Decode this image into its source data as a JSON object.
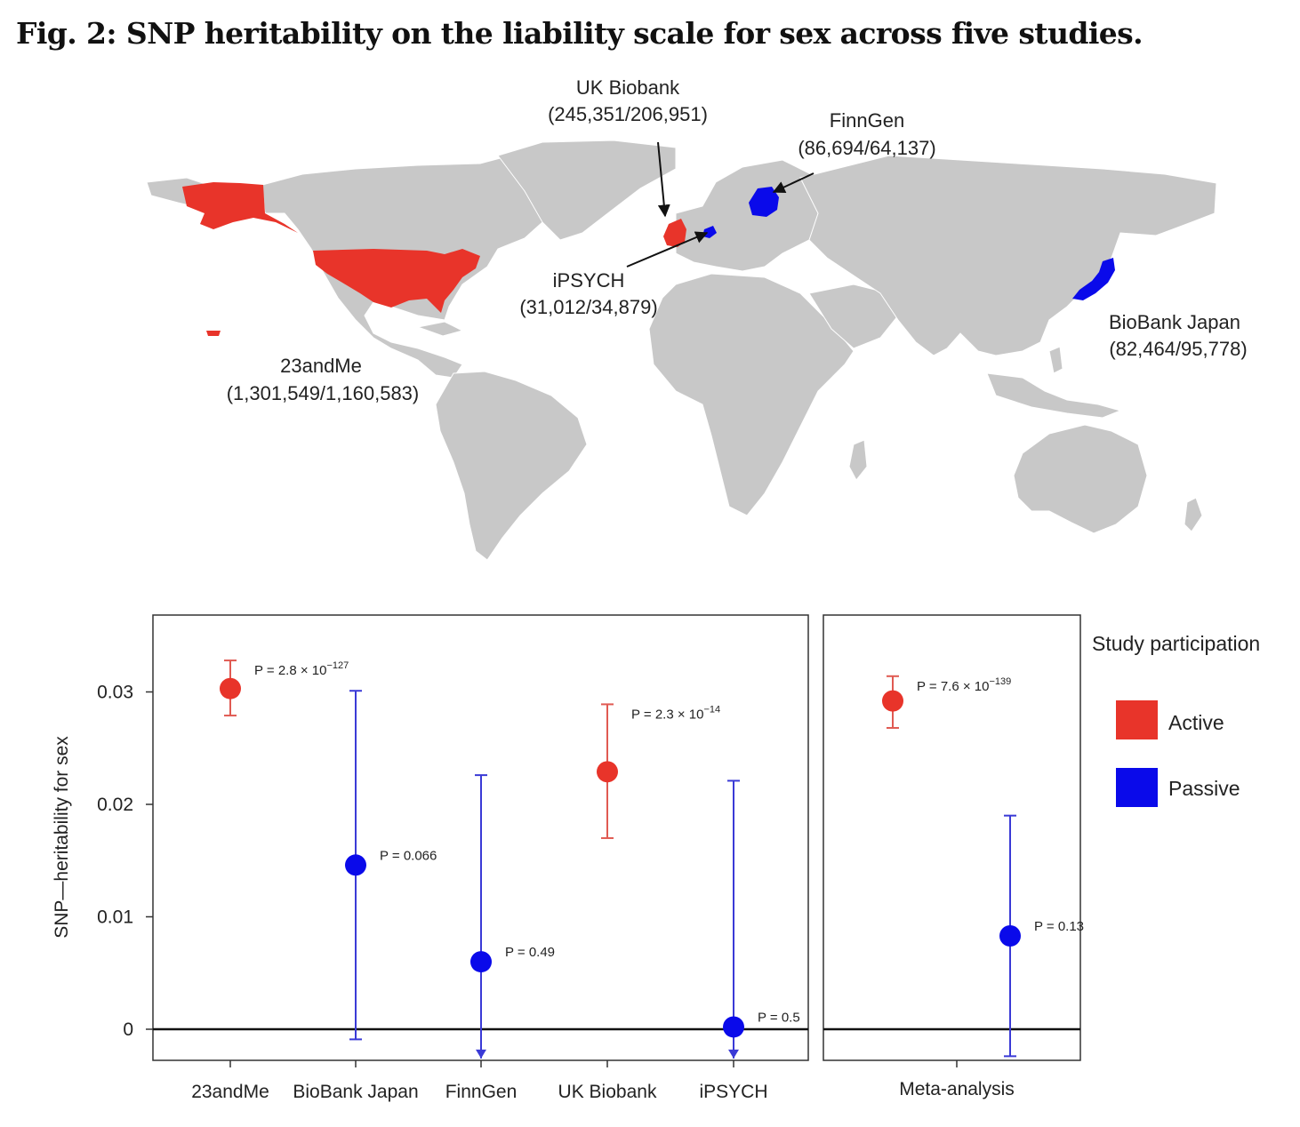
{
  "figure": {
    "title": "Fig. 2: SNP heritability on the liability scale for sex across five studies."
  },
  "map": {
    "studies": [
      {
        "name": "UK Biobank",
        "counts": "(245,351/206,951)",
        "participation": "Active"
      },
      {
        "name": "FinnGen",
        "counts": "(86,694/64,137)",
        "participation": "Passive"
      },
      {
        "name": "iPSYCH",
        "counts": "(31,012/34,879)",
        "participation": "Passive"
      },
      {
        "name": "BioBank Japan",
        "counts": "(82,464/95,778)",
        "participation": "Passive"
      },
      {
        "name": "23andMe",
        "counts": "(1,301,549/1,160,583)",
        "participation": "Active"
      }
    ]
  },
  "colors": {
    "active": "#e8342a",
    "passive": "#0a0aea",
    "land": "#c8c8c8",
    "error_active": "#e05a52",
    "error_passive": "#3a3ad6"
  },
  "chart_data": {
    "type": "scatter",
    "ylabel": "SNP—heritability for sex",
    "ylim": [
      -0.0027,
      0.0367
    ],
    "yticks": [
      0,
      0.01,
      0.02,
      0.03
    ],
    "ytick_labels": [
      "0",
      "0.01",
      "0.02",
      "0.03"
    ],
    "panels": [
      {
        "name": "studies",
        "categories": [
          "23andMe",
          "BioBank Japan",
          "FinnGen",
          "UK Biobank",
          "iPSYCH"
        ],
        "points": [
          {
            "category": "23andMe",
            "y": 0.0303,
            "lo": 0.0279,
            "hi": 0.0328,
            "p": "P = 2.8 × 10",
            "p_exp": "−127",
            "participation": "Active"
          },
          {
            "category": "BioBank Japan",
            "y": 0.0146,
            "lo": -0.0009,
            "hi": 0.0301,
            "p": "P = 0.066",
            "p_exp": "",
            "participation": "Passive"
          },
          {
            "category": "FinnGen",
            "y": 0.006,
            "lo": -0.0026,
            "hi": 0.0226,
            "p": "P = 0.49",
            "p_exp": "",
            "participation": "Passive",
            "arrow": true
          },
          {
            "category": "UK Biobank",
            "y": 0.0229,
            "lo": 0.017,
            "hi": 0.0289,
            "p": "P = 2.3 × 10",
            "p_exp": "−14",
            "participation": "Active"
          },
          {
            "category": "iPSYCH",
            "y": 0.0002,
            "lo": -0.0026,
            "hi": 0.0221,
            "p": "P = 0.5",
            "p_exp": "",
            "participation": "Passive",
            "arrow": true
          }
        ]
      },
      {
        "name": "meta",
        "categories": [
          "Meta-analysis"
        ],
        "points": [
          {
            "category": "Meta-analysis",
            "y": 0.0292,
            "lo": 0.0268,
            "hi": 0.0314,
            "p": "P = 7.6 × 10",
            "p_exp": "−139",
            "participation": "Active"
          },
          {
            "category": "Meta-analysis",
            "y": 0.0083,
            "lo": -0.0024,
            "hi": 0.019,
            "p": "P = 0.13",
            "p_exp": "",
            "participation": "Passive"
          }
        ]
      }
    ],
    "legend": {
      "title": "Study participation",
      "placement": "right",
      "entries": [
        {
          "label": "Active",
          "color": "#e8342a"
        },
        {
          "label": "Passive",
          "color": "#0a0aea"
        }
      ]
    }
  }
}
